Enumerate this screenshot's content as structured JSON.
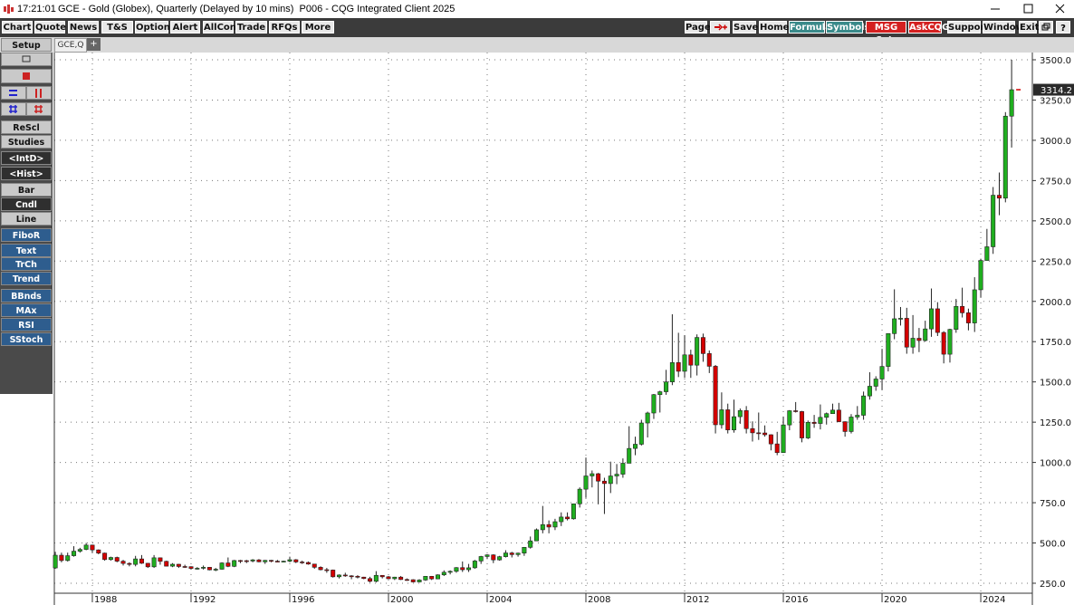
{
  "window": {
    "time": "17:21:01",
    "title": "GCE - Gold (Globex), Quarterly (Delayed by 10 mins)  P006 - CQG Integrated Client 2025"
  },
  "toolbar_left": [
    "Chart",
    "Quote",
    "News",
    "T&S",
    "Options",
    "Alert",
    "AllCon",
    "Trade",
    "RFQs",
    "More"
  ],
  "toolbar_right": [
    "Page",
    "Save",
    "Home",
    "Formula",
    "Symbols",
    "MSG Cntr",
    "AskCQG",
    "Support",
    "Window",
    "Exit"
  ],
  "tabs": [
    "GCE,Q",
    "+"
  ],
  "side_panel": [
    "Setup",
    "ReScl",
    "Studies",
    "<IntD>",
    "<Hist>",
    "Bar",
    "Cndl",
    "Line",
    "FiboR",
    "Text",
    "TrCh",
    "Trend",
    "BBnds",
    "MAx",
    "RSI",
    "SStoch"
  ],
  "chart_data": {
    "type": "candlestick",
    "up_color": "#1fae1f",
    "down_color": "#d40000",
    "grid": true,
    "xlim": [
      1986.46,
      2026.09
    ],
    "ylim": [
      188,
      3545
    ],
    "xticks": [
      1988,
      1992,
      1996,
      2000,
      2004,
      2008,
      2012,
      2016,
      2020,
      2024
    ],
    "yticks": [
      {
        "value": 250,
        "label": "250.0"
      },
      {
        "value": 500,
        "label": "500.0"
      },
      {
        "value": 750,
        "label": "750.0"
      },
      {
        "value": 1000,
        "label": "1000.0"
      },
      {
        "value": 1250,
        "label": "1250.0"
      },
      {
        "value": 1500,
        "label": "1500.0"
      },
      {
        "value": 1750,
        "label": "1750.0"
      },
      {
        "value": 2000,
        "label": "2000.0"
      },
      {
        "value": 2250,
        "label": "2250.0"
      },
      {
        "value": 2500,
        "label": "2500.0"
      },
      {
        "value": 2750,
        "label": "2750.0"
      },
      {
        "value": 3000,
        "label": "3000.0"
      },
      {
        "value": 3250,
        "label": "3250.0"
      },
      {
        "value": 3500,
        "label": "3500.0"
      }
    ],
    "x": [
      1986.5,
      1986.75,
      1987,
      1987.25,
      1987.5,
      1987.75,
      1988,
      1988.25,
      1988.5,
      1988.75,
      1989,
      1989.25,
      1989.5,
      1989.75,
      1990,
      1990.25,
      1990.5,
      1990.75,
      1991,
      1991.25,
      1991.5,
      1991.75,
      1992,
      1992.25,
      1992.5,
      1992.75,
      1993,
      1993.25,
      1993.5,
      1993.75,
      1994,
      1994.25,
      1994.5,
      1994.75,
      1995,
      1995.25,
      1995.5,
      1995.75,
      1996,
      1996.25,
      1996.5,
      1996.75,
      1997,
      1997.25,
      1997.5,
      1997.75,
      1998,
      1998.25,
      1998.5,
      1998.75,
      1999,
      1999.25,
      1999.5,
      1999.75,
      2000,
      2000.25,
      2000.5,
      2000.75,
      2001,
      2001.25,
      2001.5,
      2001.75,
      2002,
      2002.25,
      2002.5,
      2002.75,
      2003,
      2003.25,
      2003.5,
      2003.75,
      2004,
      2004.25,
      2004.5,
      2004.75,
      2005,
      2005.25,
      2005.5,
      2005.75,
      2006,
      2006.25,
      2006.5,
      2006.75,
      2007,
      2007.25,
      2007.5,
      2007.75,
      2008,
      2008.25,
      2008.5,
      2008.75,
      2009,
      2009.25,
      2009.5,
      2009.75,
      2010,
      2010.25,
      2010.5,
      2010.75,
      2011,
      2011.25,
      2011.5,
      2011.75,
      2012,
      2012.25,
      2012.5,
      2012.75,
      2013,
      2013.25,
      2013.5,
      2013.75,
      2014,
      2014.25,
      2014.5,
      2014.75,
      2015,
      2015.25,
      2015.5,
      2015.75,
      2016,
      2016.25,
      2016.5,
      2016.75,
      2017,
      2017.25,
      2017.5,
      2017.75,
      2018,
      2018.25,
      2018.5,
      2018.75,
      2019,
      2019.25,
      2019.5,
      2019.75,
      2020,
      2020.25,
      2020.5,
      2020.75,
      2021,
      2021.25,
      2021.5,
      2021.75,
      2022,
      2022.25,
      2022.5,
      2022.75,
      2023,
      2023.25,
      2023.5,
      2023.75,
      2024,
      2024.25,
      2024.5,
      2024.75,
      2025,
      2025.25
    ],
    "open": [
      345,
      424,
      391,
      421,
      449,
      460,
      487,
      457,
      437,
      397,
      410,
      387,
      373,
      367,
      401,
      374,
      352,
      408,
      386,
      356,
      368,
      354,
      353,
      342,
      343,
      349,
      333,
      337,
      376,
      355,
      391,
      390,
      388,
      395,
      383,
      392,
      387,
      384,
      387,
      396,
      382,
      379,
      369,
      349,
      334,
      332,
      290,
      301,
      296,
      293,
      288,
      279,
      262,
      299,
      290,
      278,
      288,
      273,
      272,
      258,
      270,
      293,
      277,
      302,
      318,
      324,
      347,
      334,
      346,
      388,
      416,
      426,
      395,
      415,
      438,
      428,
      437,
      473,
      513,
      582,
      614,
      599,
      632,
      661,
      650,
      743,
      834,
      916,
      930,
      884,
      869,
      916,
      927,
      995,
      1087,
      1113,
      1245,
      1307,
      1421,
      1439,
      1500,
      1620,
      1566,
      1668,
      1604,
      1776,
      1676,
      1597,
      1234,
      1327,
      1202,
      1284,
      1322,
      1210,
      1184,
      1183,
      1172,
      1115,
      1061,
      1233,
      1321,
      1316,
      1152,
      1249,
      1242,
      1280,
      1303,
      1325,
      1253,
      1192,
      1282,
      1293,
      1413,
      1473,
      1518,
      1596,
      1800,
      1892,
      1895,
      1716,
      1771,
      1757,
      1829,
      1954,
      1807,
      1672,
      1826,
      1969,
      1929,
      1866,
      2072,
      2254,
      2339,
      2659,
      2641,
      3150
    ],
    "high": [
      445,
      440,
      440,
      480,
      470,
      500,
      490,
      460,
      440,
      415,
      415,
      395,
      380,
      420,
      425,
      375,
      425,
      410,
      390,
      375,
      370,
      365,
      355,
      350,
      360,
      350,
      345,
      380,
      410,
      395,
      395,
      395,
      400,
      400,
      395,
      395,
      395,
      390,
      415,
      400,
      390,
      385,
      370,
      355,
      345,
      335,
      305,
      315,
      300,
      300,
      290,
      290,
      325,
      300,
      295,
      290,
      295,
      280,
      275,
      275,
      295,
      295,
      305,
      330,
      330,
      350,
      385,
      370,
      395,
      420,
      430,
      430,
      420,
      455,
      445,
      440,
      475,
      540,
      590,
      730,
      640,
      650,
      690,
      690,
      745,
      845,
      1030,
      950,
      935,
      905,
      1005,
      990,
      1025,
      1225,
      1160,
      1265,
      1315,
      1425,
      1445,
      1575,
      1920,
      1805,
      1790,
      1700,
      1795,
      1800,
      1695,
      1605,
      1435,
      1365,
      1390,
      1335,
      1350,
      1255,
      1310,
      1230,
      1175,
      1190,
      1285,
      1325,
      1375,
      1320,
      1260,
      1295,
      1360,
      1310,
      1365,
      1370,
      1255,
      1300,
      1350,
      1440,
      1560,
      1535,
      1705,
      1800,
      2075,
      1965,
      1960,
      1915,
      1835,
      1880,
      2080,
      1995,
      1815,
      1830,
      2015,
      2085,
      1955,
      2150,
      2265,
      2450,
      2710,
      2800,
      3175,
      3500
    ],
    "low": [
      340,
      380,
      385,
      415,
      440,
      455,
      440,
      430,
      390,
      390,
      380,
      360,
      355,
      355,
      370,
      345,
      345,
      365,
      355,
      350,
      345,
      345,
      335,
      335,
      335,
      330,
      325,
      335,
      350,
      350,
      375,
      375,
      380,
      380,
      370,
      380,
      380,
      380,
      380,
      375,
      370,
      365,
      340,
      330,
      315,
      285,
      280,
      290,
      275,
      280,
      275,
      255,
      255,
      280,
      275,
      270,
      270,
      265,
      255,
      255,
      265,
      270,
      275,
      295,
      305,
      315,
      320,
      320,
      340,
      370,
      400,
      375,
      390,
      410,
      410,
      415,
      420,
      465,
      525,
      560,
      560,
      580,
      605,
      640,
      645,
      720,
      780,
      845,
      740,
      680,
      810,
      865,
      905,
      995,
      1045,
      1105,
      1155,
      1270,
      1310,
      1420,
      1480,
      1530,
      1525,
      1525,
      1540,
      1625,
      1555,
      1180,
      1210,
      1180,
      1185,
      1240,
      1180,
      1130,
      1140,
      1160,
      1075,
      1045,
      1060,
      1200,
      1310,
      1125,
      1145,
      1215,
      1205,
      1235,
      1305,
      1250,
      1160,
      1180,
      1265,
      1265,
      1390,
      1445,
      1450,
      1565,
      1765,
      1850,
      1675,
      1675,
      1685,
      1750,
      1780,
      1785,
      1615,
      1620,
      1805,
      1900,
      1820,
      1810,
      2025,
      2275,
      2295,
      2535,
      2615,
      2955
    ],
    "close": [
      424,
      391,
      421,
      449,
      460,
      487,
      457,
      437,
      397,
      410,
      387,
      373,
      367,
      401,
      374,
      352,
      408,
      386,
      356,
      368,
      354,
      353,
      342,
      343,
      349,
      333,
      337,
      376,
      355,
      391,
      390,
      388,
      395,
      383,
      392,
      387,
      384,
      387,
      396,
      382,
      379,
      369,
      349,
      334,
      332,
      290,
      301,
      296,
      293,
      288,
      279,
      262,
      299,
      290,
      278,
      288,
      273,
      272,
      258,
      270,
      293,
      277,
      302,
      318,
      324,
      347,
      334,
      346,
      388,
      416,
      426,
      395,
      415,
      438,
      428,
      437,
      473,
      513,
      582,
      614,
      599,
      632,
      661,
      650,
      743,
      834,
      916,
      930,
      884,
      869,
      916,
      927,
      995,
      1087,
      1113,
      1245,
      1307,
      1421,
      1439,
      1500,
      1620,
      1566,
      1668,
      1604,
      1776,
      1676,
      1597,
      1234,
      1327,
      1202,
      1284,
      1322,
      1210,
      1184,
      1183,
      1172,
      1115,
      1061,
      1233,
      1321,
      1316,
      1152,
      1249,
      1242,
      1280,
      1303,
      1325,
      1253,
      1192,
      1282,
      1293,
      1413,
      1473,
      1518,
      1596,
      1800,
      1892,
      1895,
      1716,
      1771,
      1757,
      1829,
      1954,
      1807,
      1672,
      1826,
      1969,
      1929,
      1866,
      2072,
      2254,
      2339,
      2659,
      2641,
      3150,
      3314.2
    ]
  }
}
